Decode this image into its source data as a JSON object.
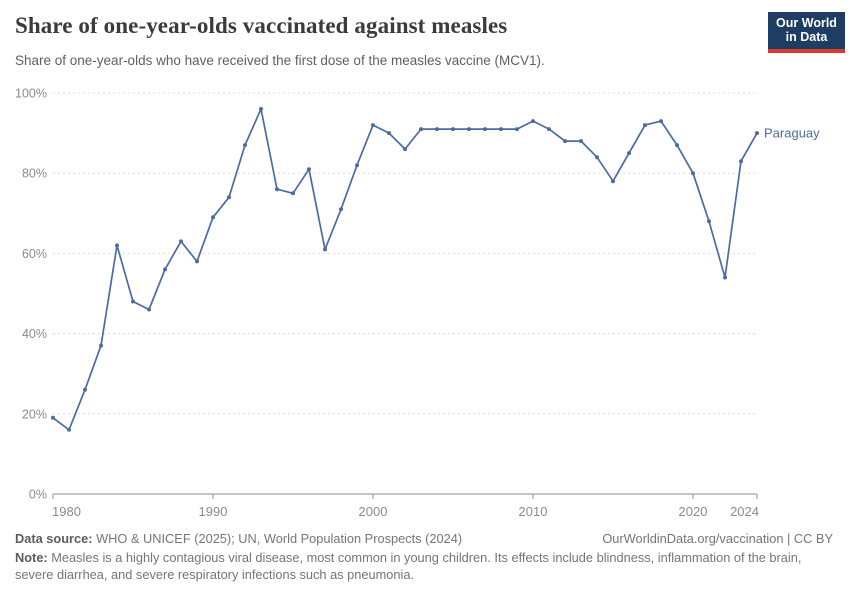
{
  "header": {
    "title": "Share of one-year-olds vaccinated against measles",
    "subtitle": "Share of one-year-olds who have received the first dose of the measles vaccine (MCV1).",
    "logo": {
      "line1": "Our World",
      "line2": "in Data"
    }
  },
  "chart_data": {
    "type": "line",
    "title": "Share of one-year-olds vaccinated against measles",
    "xlabel": "",
    "ylabel": "",
    "xlim": [
      1980,
      2024
    ],
    "ylim": [
      0,
      100
    ],
    "xticks": [
      1980,
      1990,
      2000,
      2010,
      2020,
      2024
    ],
    "yticks": [
      0,
      20,
      40,
      60,
      80,
      100
    ],
    "ytick_suffix": "%",
    "grid": "horizontal-dashed",
    "legend_position": "end-of-line-label",
    "series": [
      {
        "name": "Paraguay",
        "color": "#4c6ba3",
        "x": [
          1980,
          1981,
          1982,
          1983,
          1984,
          1985,
          1986,
          1987,
          1988,
          1989,
          1990,
          1991,
          1992,
          1993,
          1994,
          1995,
          1996,
          1997,
          1998,
          1999,
          2000,
          2001,
          2002,
          2003,
          2004,
          2005,
          2006,
          2007,
          2008,
          2009,
          2010,
          2011,
          2012,
          2013,
          2014,
          2015,
          2016,
          2017,
          2018,
          2019,
          2020,
          2021,
          2022,
          2023,
          2024
        ],
        "values": [
          19,
          16,
          26,
          37,
          62,
          48,
          46,
          56,
          63,
          58,
          69,
          74,
          87,
          96,
          76,
          75,
          81,
          61,
          71,
          82,
          92,
          90,
          86,
          91,
          91,
          91,
          91,
          91,
          91,
          91,
          93,
          91,
          88,
          88,
          84,
          78,
          85,
          92,
          93,
          87,
          80,
          68,
          54,
          83,
          90
        ]
      }
    ]
  },
  "footer": {
    "datasource_label": "Data source:",
    "datasource_text": " WHO & UNICEF (2025); UN, World Population Prospects (2024)",
    "rights": "OurWorldinData.org/vaccination | CC BY",
    "note_label": "Note:",
    "note_text": " Measles is a highly contagious viral disease, most common in young children. Its effects include blindness, inflammation of the brain, severe diarrhea, and severe respiratory infections such as pneumonia."
  },
  "colors": {
    "line": "#4c6ba3",
    "grid": "#dcdcdc",
    "axis": "#8f8f8f",
    "tick_text": "#8b8b8b",
    "title_text": "#3b3b3b",
    "logo_navy": "#1d3d63",
    "logo_red": "#d93a2b"
  }
}
